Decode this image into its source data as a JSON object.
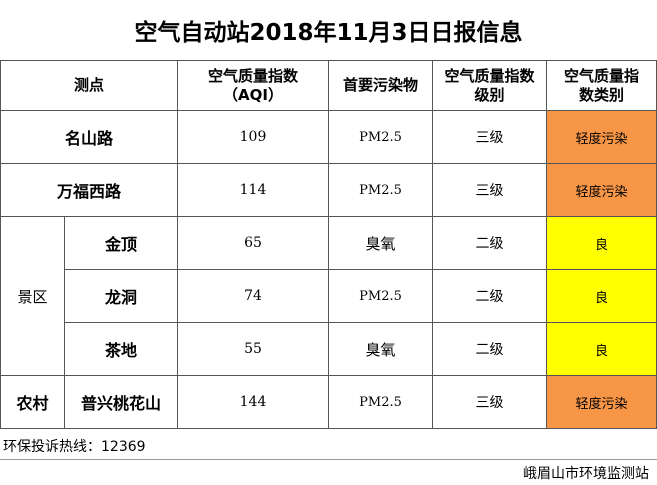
{
  "title": "空气自动站2018年11月3日日报信息",
  "header": {
    "site": "测点",
    "aqi": [
      "空气质量指数",
      "（AQI）"
    ],
    "pollutant": "首要污染物",
    "level": [
      "空气质量指数",
      "级别"
    ],
    "category": [
      "空气质量指",
      "数类别"
    ]
  },
  "groups": {
    "scenic": "景区",
    "rural": "农村"
  },
  "rows": [
    {
      "site": "名山路",
      "aqi": "109",
      "pollutant": "PM2.5",
      "level": "三级",
      "category": "轻度污染"
    },
    {
      "site": "万福西路",
      "aqi": "114",
      "pollutant": "PM2.5",
      "level": "三级",
      "category": "轻度污染"
    },
    {
      "site": "金顶",
      "aqi": "65",
      "pollutant": "臭氧",
      "level": "二级",
      "category": "良"
    },
    {
      "site": "龙洞",
      "aqi": "74",
      "pollutant": "PM2.5",
      "level": "二级",
      "category": "良"
    },
    {
      "site": "茶地",
      "aqi": "55",
      "pollutant": "臭氧",
      "level": "二级",
      "category": "良"
    },
    {
      "site": "普兴桃花山",
      "aqi": "144",
      "pollutant": "PM2.5",
      "level": "三级",
      "category": "轻度污染"
    }
  ],
  "colors": {
    "light_pollution": "#f79646",
    "good": "#ffff00"
  },
  "footer": {
    "hotline": "环保投诉热线：12369",
    "organization": "峨眉山市环境监测站"
  }
}
